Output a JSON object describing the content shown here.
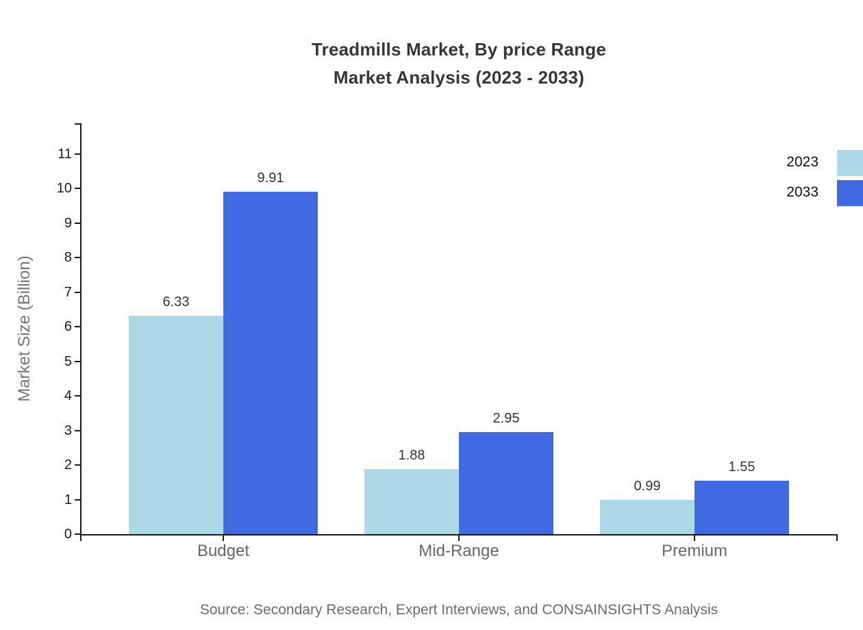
{
  "title": {
    "line1": "Treadmills Market, By price Range",
    "line2": "Market Analysis (2023 - 2033)"
  },
  "source_note": "Source: Secondary Research, Expert Interviews, and CONSAINSIGHTS Analysis",
  "chart_data": {
    "type": "bar",
    "title": "Treadmills Market, By price Range Market Analysis (2023 - 2033)",
    "categories": [
      "Budget",
      "Mid-Range",
      "Premium"
    ],
    "series": [
      {
        "name": "2023",
        "color": "#ADD8E6",
        "values": [
          6.33,
          1.88,
          0.99
        ]
      },
      {
        "name": "2033",
        "color": "#4169E1",
        "values": [
          9.91,
          2.95,
          1.55
        ]
      }
    ],
    "value_labels": [
      "6.33",
      "9.91",
      "1.88",
      "2.95",
      "0.99",
      "1.55"
    ],
    "xlabel": "",
    "ylabel": "Market Size (Billion)",
    "ylim": [
      0,
      11
    ],
    "yticks": [
      0,
      1,
      2,
      3,
      4,
      5,
      6,
      7,
      8,
      9,
      10,
      11
    ],
    "grid": false,
    "legend_position": "top-right",
    "bar_orientation": "vertical"
  },
  "colors": {
    "series_2023": "#ADD8E6",
    "series_2033": "#4169E1",
    "axis": "#1a1a1a",
    "title_text": "#363636",
    "muted_text": "#666666",
    "background": "#ffffff"
  }
}
